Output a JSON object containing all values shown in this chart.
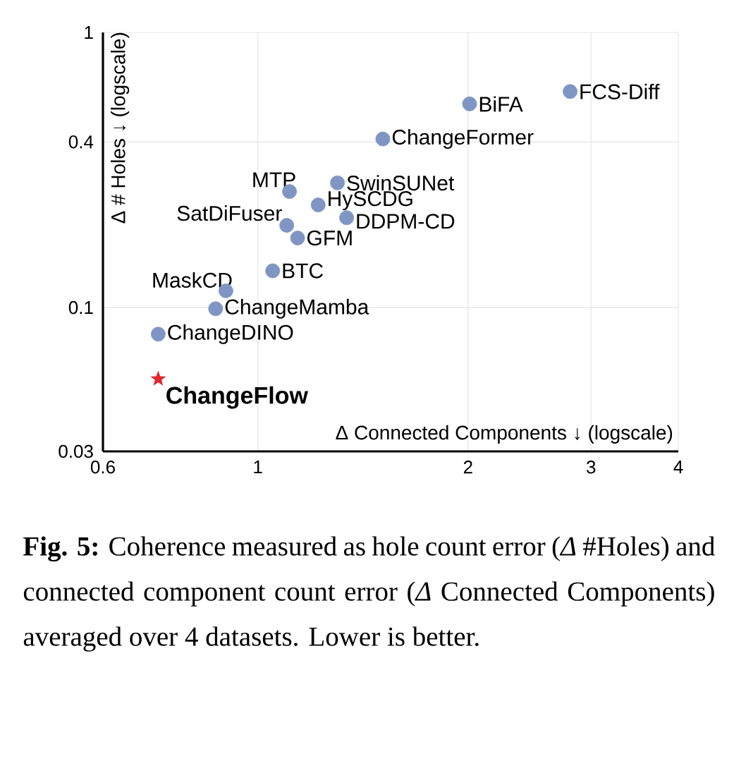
{
  "chart_data": {
    "type": "scatter",
    "xlabel": "Δ Connected Components ↓ (logscale)",
    "ylabel": "Δ # Holes ↓ (logscale)",
    "log": "xy",
    "grid": true,
    "xlim": [
      0.6,
      4
    ],
    "xticks": [
      0.6,
      1,
      2,
      3,
      4
    ],
    "ylim": [
      0.03,
      1
    ],
    "yticks": [
      0.03,
      0.1,
      0.4,
      1
    ],
    "series": [
      {
        "color": "#7f96c4",
        "marker": "circle",
        "x": [
          2.8,
          2.01,
          1.51,
          1.3,
          1.11,
          1.22,
          1.34,
          1.1,
          1.14,
          1.05,
          0.9,
          0.87,
          0.72
        ],
        "values": [
          0.61,
          0.55,
          0.41,
          0.284,
          0.264,
          0.236,
          0.212,
          0.199,
          0.179,
          0.136,
          0.115,
          0.099,
          0.08
        ]
      },
      {
        "name": "ChangeFlow",
        "color": "#e0282e",
        "marker": "star",
        "x": [
          0.72
        ],
        "values": [
          0.055
        ]
      }
    ],
    "annotations": [
      {
        "text": "FCS-Diff",
        "x": 2.8,
        "y": 0.61
      },
      {
        "text": "BiFA",
        "x": 2.01,
        "y": 0.55
      },
      {
        "text": "ChangeFormer",
        "x": 1.51,
        "y": 0.41
      },
      {
        "text": "SwinSUNet",
        "x": 1.3,
        "y": 0.284
      },
      {
        "text": "MTP",
        "x": 1.11,
        "y": 0.264
      },
      {
        "text": "HySCDG",
        "x": 1.22,
        "y": 0.236
      },
      {
        "text": "DDPM-CD",
        "x": 1.34,
        "y": 0.212
      },
      {
        "text": "SatDiFuser",
        "x": 1.1,
        "y": 0.199
      },
      {
        "text": "GFM",
        "x": 1.14,
        "y": 0.179
      },
      {
        "text": "BTC",
        "x": 1.05,
        "y": 0.136
      },
      {
        "text": "MaskCD",
        "x": 0.9,
        "y": 0.115
      },
      {
        "text": "ChangeMamba",
        "x": 0.87,
        "y": 0.099
      },
      {
        "text": "ChangeDINO",
        "x": 0.72,
        "y": 0.08
      },
      "**Fig. 5:** Coherence measured as hole count error (*Δ* #Holes) and connected component count error (*Δ* Connected Components) averaged over 4 datasets. Lower is better."
    ]
  }
}
